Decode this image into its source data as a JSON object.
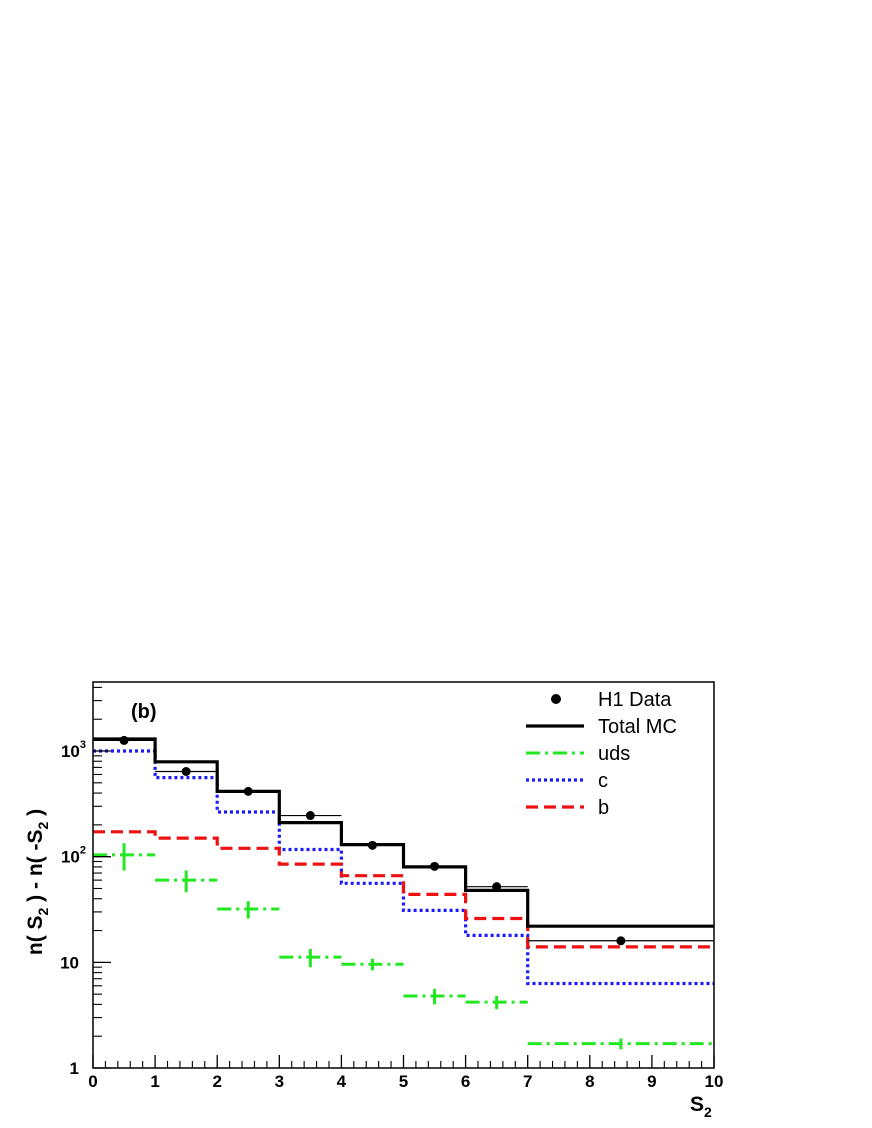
{
  "chart_data": {
    "type": "line",
    "panel_label": "(b)",
    "xlabel": {
      "base": "S",
      "sub": "2"
    },
    "ylabel": {
      "p1": "n( S",
      "s1": "2",
      "p2": " ) - n( -S",
      "s2": "2",
      "p3": " )"
    },
    "xlim": [
      0,
      10
    ],
    "ylim": [
      1,
      4500
    ],
    "yscale": "log",
    "x_ticks": [
      "0",
      "1",
      "2",
      "3",
      "4",
      "5",
      "6",
      "7",
      "8",
      "9",
      "10"
    ],
    "y_ticks": [
      {
        "value": 1,
        "base": "1",
        "exp": ""
      },
      {
        "value": 10,
        "base": "10",
        "exp": ""
      },
      {
        "value": 100,
        "base": "10",
        "exp": "2"
      },
      {
        "value": 1000,
        "base": "10",
        "exp": "3"
      }
    ],
    "legend_position": "top-right",
    "bin_edges": [
      0,
      1,
      2,
      3,
      4,
      5,
      6,
      7,
      10
    ],
    "series": [
      {
        "name": "H1 Data",
        "kind": "points",
        "color": "#000000",
        "x": [
          0.5,
          1.5,
          2.5,
          3.5,
          4.5,
          5.5,
          6.5,
          8.5
        ],
        "y": [
          1260,
          640,
          415,
          245,
          128,
          81,
          52,
          16
        ],
        "xerr": [
          0.5,
          0.5,
          0.5,
          0.5,
          0.5,
          0.5,
          0.5,
          1.5
        ]
      },
      {
        "name": "Total MC",
        "kind": "hist",
        "color": "#000000",
        "values": [
          1300,
          790,
          415,
          210,
          130,
          80,
          48,
          22
        ]
      },
      {
        "name": "uds",
        "kind": "crosses",
        "color": "#22e822",
        "x": [
          0.5,
          1.5,
          2.5,
          3.5,
          4.5,
          5.5,
          6.5,
          8.5
        ],
        "y": [
          104,
          60,
          32,
          11.2,
          9.6,
          4.8,
          4.2,
          1.7
        ],
        "xerr": [
          0.5,
          0.5,
          0.5,
          0.5,
          0.5,
          0.5,
          0.5,
          1.5
        ],
        "yerr": [
          30,
          14,
          6,
          2.2,
          1.2,
          0.8,
          0.6,
          0.2
        ]
      },
      {
        "name": "c",
        "kind": "hist",
        "color": "#1a1aff",
        "values": [
          1000,
          560,
          265,
          117,
          56,
          31,
          18,
          6.3
        ]
      },
      {
        "name": "b",
        "kind": "hist",
        "color": "#ee1111",
        "values": [
          172,
          150,
          120,
          85,
          66,
          44,
          26,
          14
        ]
      }
    ]
  }
}
